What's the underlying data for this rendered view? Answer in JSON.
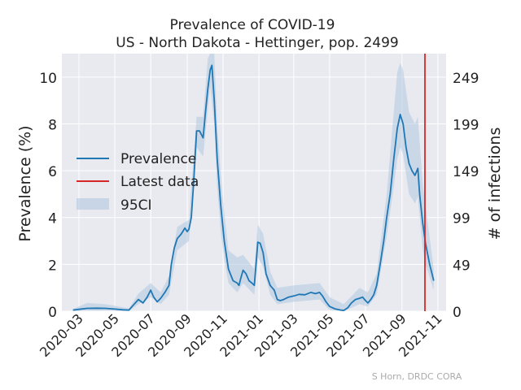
{
  "chart_data": {
    "type": "line",
    "title": "Prevalence of COVID-19",
    "subtitle": "US - North Dakota - Hettinger, pop. 2499",
    "ylabel": "Prevalence (%)",
    "y2label": "# of infections",
    "ylim": [
      0,
      11
    ],
    "y2ticks": [
      0,
      49,
      99,
      149,
      199,
      249
    ],
    "yticks": [
      0,
      2,
      4,
      6,
      8,
      10
    ],
    "xticks": [
      "2020-03",
      "2020-05",
      "2020-07",
      "2020-09",
      "2020-11",
      "2021-01",
      "2021-03",
      "2021-05",
      "2021-07",
      "2021-09",
      "2021-11"
    ],
    "xlim": [
      "2020-02-01",
      "2021-11-15"
    ],
    "grid": true,
    "legend_position": "center-left",
    "latest_data_date": "2021-10-10",
    "credit": "S Horn, DRDC CORA",
    "colors": {
      "prevalence": "#1f77b4",
      "latest": "#d62728",
      "ci": "#b0c8e0",
      "background": "#e9e9f0",
      "grid": "#ffffff"
    },
    "series": [
      {
        "name": "Prevalence",
        "points": [
          [
            "2020-02-20",
            0.05
          ],
          [
            "2020-03-01",
            0.08
          ],
          [
            "2020-03-15",
            0.12
          ],
          [
            "2020-04-01",
            0.13
          ],
          [
            "2020-04-15",
            0.12
          ],
          [
            "2020-05-01",
            0.09
          ],
          [
            "2020-05-15",
            0.06
          ],
          [
            "2020-05-25",
            0.05
          ],
          [
            "2020-06-01",
            0.25
          ],
          [
            "2020-06-10",
            0.5
          ],
          [
            "2020-06-18",
            0.35
          ],
          [
            "2020-06-25",
            0.6
          ],
          [
            "2020-07-01",
            0.9
          ],
          [
            "2020-07-06",
            0.6
          ],
          [
            "2020-07-12",
            0.4
          ],
          [
            "2020-07-18",
            0.55
          ],
          [
            "2020-07-25",
            0.8
          ],
          [
            "2020-08-01",
            1.1
          ],
          [
            "2020-08-05",
            2.0
          ],
          [
            "2020-08-10",
            2.7
          ],
          [
            "2020-08-15",
            3.1
          ],
          [
            "2020-08-22",
            3.3
          ],
          [
            "2020-08-28",
            3.55
          ],
          [
            "2020-09-01",
            3.4
          ],
          [
            "2020-09-04",
            3.5
          ],
          [
            "2020-09-08",
            4.0
          ],
          [
            "2020-09-12",
            5.5
          ],
          [
            "2020-09-17",
            7.7
          ],
          [
            "2020-09-22",
            7.7
          ],
          [
            "2020-09-28",
            7.4
          ],
          [
            "2020-10-02",
            8.5
          ],
          [
            "2020-10-06",
            9.5
          ],
          [
            "2020-10-10",
            10.3
          ],
          [
            "2020-10-13",
            10.5
          ],
          [
            "2020-10-17",
            9.0
          ],
          [
            "2020-10-22",
            6.5
          ],
          [
            "2020-10-28",
            4.5
          ],
          [
            "2020-11-03",
            3.0
          ],
          [
            "2020-11-10",
            1.8
          ],
          [
            "2020-11-18",
            1.3
          ],
          [
            "2020-11-25",
            1.2
          ],
          [
            "2020-11-28",
            1.1
          ],
          [
            "2020-12-01",
            1.4
          ],
          [
            "2020-12-05",
            1.75
          ],
          [
            "2020-12-10",
            1.6
          ],
          [
            "2020-12-15",
            1.3
          ],
          [
            "2020-12-20",
            1.2
          ],
          [
            "2020-12-24",
            1.1
          ],
          [
            "2020-12-27",
            2.0
          ],
          [
            "2020-12-30",
            2.95
          ],
          [
            "2021-01-03",
            2.9
          ],
          [
            "2021-01-08",
            2.5
          ],
          [
            "2021-01-13",
            1.6
          ],
          [
            "2021-01-20",
            1.1
          ],
          [
            "2021-01-27",
            0.9
          ],
          [
            "2021-02-01",
            0.5
          ],
          [
            "2021-02-06",
            0.45
          ],
          [
            "2021-02-12",
            0.5
          ],
          [
            "2021-02-20",
            0.6
          ],
          [
            "2021-03-01",
            0.65
          ],
          [
            "2021-03-10",
            0.72
          ],
          [
            "2021-03-20",
            0.7
          ],
          [
            "2021-03-30",
            0.8
          ],
          [
            "2021-04-07",
            0.75
          ],
          [
            "2021-04-14",
            0.8
          ],
          [
            "2021-04-19",
            0.65
          ],
          [
            "2021-04-25",
            0.4
          ],
          [
            "2021-05-01",
            0.2
          ],
          [
            "2021-05-10",
            0.1
          ],
          [
            "2021-05-20",
            0.05
          ],
          [
            "2021-05-25",
            0.03
          ],
          [
            "2021-06-01",
            0.15
          ],
          [
            "2021-06-07",
            0.35
          ],
          [
            "2021-06-14",
            0.5
          ],
          [
            "2021-06-21",
            0.55
          ],
          [
            "2021-06-26",
            0.6
          ],
          [
            "2021-07-01",
            0.45
          ],
          [
            "2021-07-05",
            0.35
          ],
          [
            "2021-07-10",
            0.5
          ],
          [
            "2021-07-15",
            0.7
          ],
          [
            "2021-07-20",
            1.1
          ],
          [
            "2021-07-26",
            2.0
          ],
          [
            "2021-08-01",
            3.0
          ],
          [
            "2021-08-06",
            4.0
          ],
          [
            "2021-08-12",
            5.0
          ],
          [
            "2021-08-18",
            6.5
          ],
          [
            "2021-08-24",
            7.8
          ],
          [
            "2021-08-29",
            8.4
          ],
          [
            "2021-09-03",
            8.0
          ],
          [
            "2021-09-08",
            7.0
          ],
          [
            "2021-09-13",
            6.3
          ],
          [
            "2021-09-18",
            6.0
          ],
          [
            "2021-09-23",
            5.8
          ],
          [
            "2021-09-28",
            6.1
          ],
          [
            "2021-10-01",
            5.0
          ],
          [
            "2021-10-06",
            3.8
          ],
          [
            "2021-10-11",
            2.9
          ],
          [
            "2021-10-18",
            2.0
          ],
          [
            "2021-10-25",
            1.3
          ]
        ]
      },
      {
        "name": "95CI",
        "upper": [
          [
            "2020-02-20",
            0.1
          ],
          [
            "2020-03-15",
            0.35
          ],
          [
            "2020-04-15",
            0.3
          ],
          [
            "2020-05-25",
            0.12
          ],
          [
            "2020-06-10",
            0.75
          ],
          [
            "2020-07-01",
            1.2
          ],
          [
            "2020-07-18",
            0.8
          ],
          [
            "2020-08-01",
            1.5
          ],
          [
            "2020-08-15",
            3.6
          ],
          [
            "2020-09-04",
            3.9
          ],
          [
            "2020-09-17",
            8.3
          ],
          [
            "2020-09-28",
            8.3
          ],
          [
            "2020-10-06",
            10.8
          ],
          [
            "2020-10-10",
            11.0
          ],
          [
            "2020-10-17",
            11.0
          ],
          [
            "2020-10-22",
            8.0
          ],
          [
            "2020-10-28",
            5.8
          ],
          [
            "2020-11-03",
            4.2
          ],
          [
            "2020-11-10",
            2.6
          ],
          [
            "2020-11-25",
            2.3
          ],
          [
            "2020-12-05",
            2.4
          ],
          [
            "2020-12-24",
            1.8
          ],
          [
            "2020-12-30",
            3.7
          ],
          [
            "2021-01-08",
            3.3
          ],
          [
            "2021-01-20",
            1.7
          ],
          [
            "2021-02-01",
            1.0
          ],
          [
            "2021-03-01",
            1.1
          ],
          [
            "2021-04-14",
            1.2
          ],
          [
            "2021-05-01",
            0.6
          ],
          [
            "2021-05-25",
            0.3
          ],
          [
            "2021-06-21",
            1.0
          ],
          [
            "2021-07-05",
            0.8
          ],
          [
            "2021-07-20",
            1.6
          ],
          [
            "2021-08-06",
            5.0
          ],
          [
            "2021-08-18",
            8.5
          ],
          [
            "2021-08-24",
            10.2
          ],
          [
            "2021-08-29",
            10.6
          ],
          [
            "2021-09-03",
            10.3
          ],
          [
            "2021-09-13",
            8.5
          ],
          [
            "2021-09-23",
            8.0
          ],
          [
            "2021-09-28",
            8.3
          ],
          [
            "2021-10-06",
            5.5
          ],
          [
            "2021-10-11",
            4.5
          ],
          [
            "2021-10-25",
            1.8
          ]
        ],
        "lower": [
          [
            "2020-02-20",
            0.0
          ],
          [
            "2020-03-15",
            0.02
          ],
          [
            "2020-04-15",
            0.02
          ],
          [
            "2020-05-25",
            0.0
          ],
          [
            "2020-06-10",
            0.3
          ],
          [
            "2020-07-01",
            0.6
          ],
          [
            "2020-07-18",
            0.3
          ],
          [
            "2020-08-01",
            0.7
          ],
          [
            "2020-08-15",
            2.6
          ],
          [
            "2020-09-04",
            3.0
          ],
          [
            "2020-09-17",
            7.0
          ],
          [
            "2020-09-28",
            6.6
          ],
          [
            "2020-10-06",
            8.6
          ],
          [
            "2020-10-10",
            9.6
          ],
          [
            "2020-10-17",
            8.0
          ],
          [
            "2020-10-22",
            5.3
          ],
          [
            "2020-10-28",
            3.4
          ],
          [
            "2020-11-03",
            2.2
          ],
          [
            "2020-11-10",
            1.2
          ],
          [
            "2020-11-25",
            0.8
          ],
          [
            "2020-12-05",
            1.2
          ],
          [
            "2020-12-24",
            0.7
          ],
          [
            "2020-12-30",
            2.3
          ],
          [
            "2021-01-08",
            1.9
          ],
          [
            "2021-01-20",
            0.7
          ],
          [
            "2021-02-01",
            0.3
          ],
          [
            "2021-03-01",
            0.4
          ],
          [
            "2021-04-14",
            0.5
          ],
          [
            "2021-05-01",
            0.05
          ],
          [
            "2021-05-25",
            0.0
          ],
          [
            "2021-06-21",
            0.3
          ],
          [
            "2021-07-05",
            0.2
          ],
          [
            "2021-07-20",
            0.7
          ],
          [
            "2021-08-06",
            3.2
          ],
          [
            "2021-08-18",
            5.3
          ],
          [
            "2021-08-24",
            6.5
          ],
          [
            "2021-08-29",
            7.0
          ],
          [
            "2021-09-03",
            6.7
          ],
          [
            "2021-09-13",
            5.0
          ],
          [
            "2021-09-23",
            4.6
          ],
          [
            "2021-09-28",
            4.9
          ],
          [
            "2021-10-06",
            2.7
          ],
          [
            "2021-10-11",
            2.0
          ],
          [
            "2021-10-25",
            0.9
          ]
        ]
      },
      {
        "name": "Latest data"
      }
    ]
  }
}
